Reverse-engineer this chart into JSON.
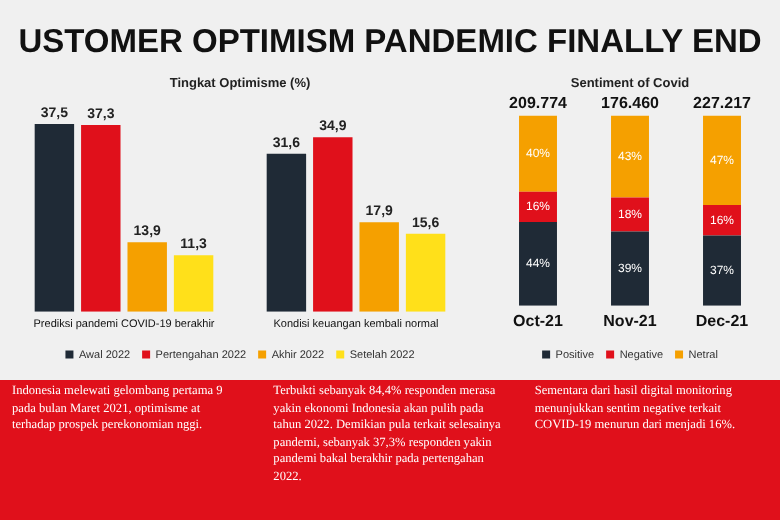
{
  "chart_data": [
    {
      "type": "bar",
      "title": "USTOMER OPTIMISM PANDEMIC FINALLY END",
      "subtitle": "Tingkat Optimisme (%)",
      "categories": [
        "Prediksi pandemi COVID-19 berakhir",
        "Kondisi keuangan kembali normal"
      ],
      "series": [
        {
          "name": "Awal 2022",
          "color": "#1f2a36",
          "values": [
            37.5,
            31.6
          ],
          "value_labels": [
            "37,5",
            "31,6"
          ]
        },
        {
          "name": "Pertengahan 2022",
          "color": "#e0101b",
          "values": [
            37.3,
            34.9
          ],
          "value_labels": [
            "37,3",
            "34,9"
          ]
        },
        {
          "name": "Akhir 2022",
          "color": "#f5a000",
          "values": [
            13.9,
            17.9
          ],
          "value_labels": [
            "13,9",
            "17,9"
          ]
        },
        {
          "name": "Setelah 2022",
          "color": "#ffe01a",
          "values": [
            11.3,
            15.6
          ],
          "value_labels": [
            "11,3",
            "15,6"
          ]
        }
      ],
      "legend": "bottom",
      "tick_labels": "x",
      "grid": false,
      "annotations": [
        "Indonesia melewati gelombang pertama 9 pada bulan Maret 2021, optimisme at terhadap prospek perekonomian nggi.",
        "Terbukti sebanyak 84,4% responden merasa yakin ekonomi Indonesia akan pulih pada tahun 2022. Demikian pula terkait selesainya pandemi, sebanyak 37,3% responden yakin pandemi bakal berakhir pada pertengahan 2022."
      ]
    },
    {
      "type": "bar",
      "title": "Sentiment of Covid",
      "categories": [
        "Oct-21",
        "Nov-21",
        "Dec-21"
      ],
      "stacked": true,
      "series": [
        {
          "name": "Positive",
          "color": "#1f2a36",
          "values": [
            44,
            39,
            37
          ],
          "value_labels": [
            "44%",
            "39%",
            "37%"
          ]
        },
        {
          "name": "Negative",
          "color": "#e0101b",
          "values": [
            16,
            18,
            16
          ],
          "value_labels": [
            "16%",
            "18%",
            "16%"
          ]
        },
        {
          "name": "Netral",
          "color": "#f5a000",
          "values": [
            40,
            43,
            47
          ],
          "value_labels": [
            "40%",
            "43%",
            "47%"
          ]
        }
      ],
      "legend": "bottom",
      "tick_labels": "x",
      "grid": false,
      "annotations": [
        {
          "text": "209.774",
          "x": "Oct-21",
          "y": 100
        },
        {
          "text": "176.460",
          "x": "Nov-21",
          "y": 100
        },
        {
          "text": "227.217",
          "x": "Dec-21",
          "y": 100
        },
        "Sementara dari hasil digital monitoring menunjukkan sentim negative terkait COVID-19 menurun dari menjadi 16%."
      ]
    }
  ]
}
